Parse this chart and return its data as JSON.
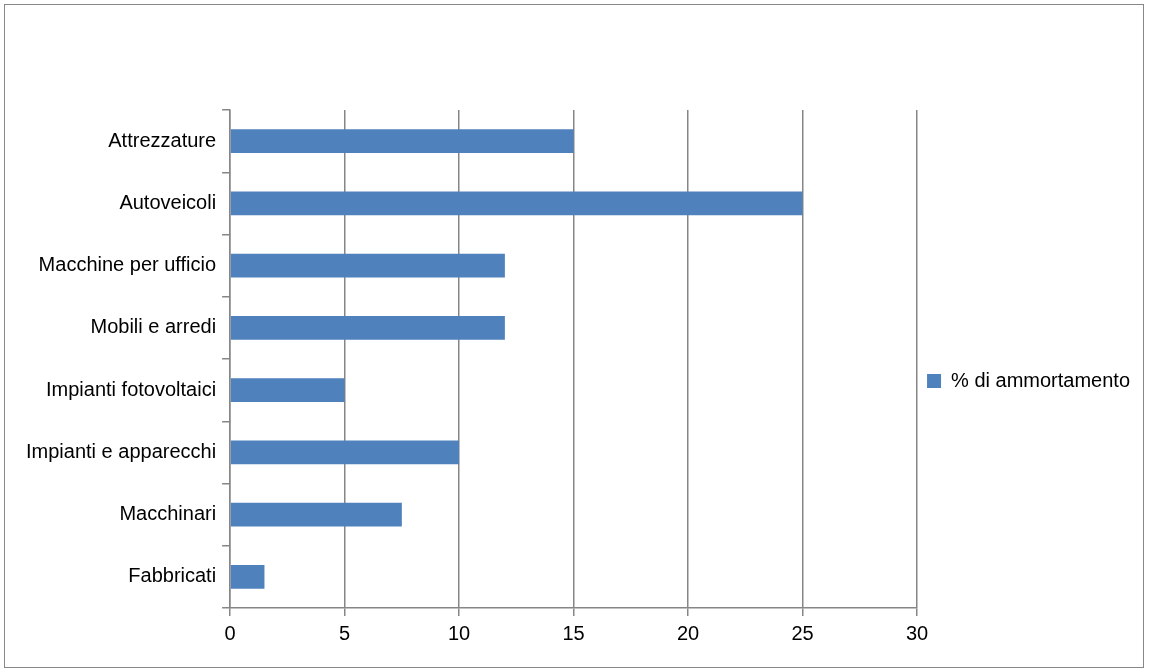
{
  "chart_data": {
    "type": "bar",
    "orientation": "horizontal",
    "categories": [
      "Attrezzature",
      "Autoveicoli",
      "Macchine per ufficio",
      "Mobili e arredi",
      "Impianti fotovoltaici",
      "Impianti e apparecchi",
      "Macchinari",
      "Fabbricati"
    ],
    "series": [
      {
        "name": "% di ammortamento",
        "color": "#4f81bd",
        "values": [
          15,
          25,
          12,
          12,
          5,
          10,
          7.5,
          1.5
        ]
      }
    ],
    "xlim": [
      0,
      30
    ],
    "xticks": [
      0,
      5,
      10,
      15,
      20,
      25,
      30
    ],
    "grid": "x",
    "legend": "right"
  }
}
